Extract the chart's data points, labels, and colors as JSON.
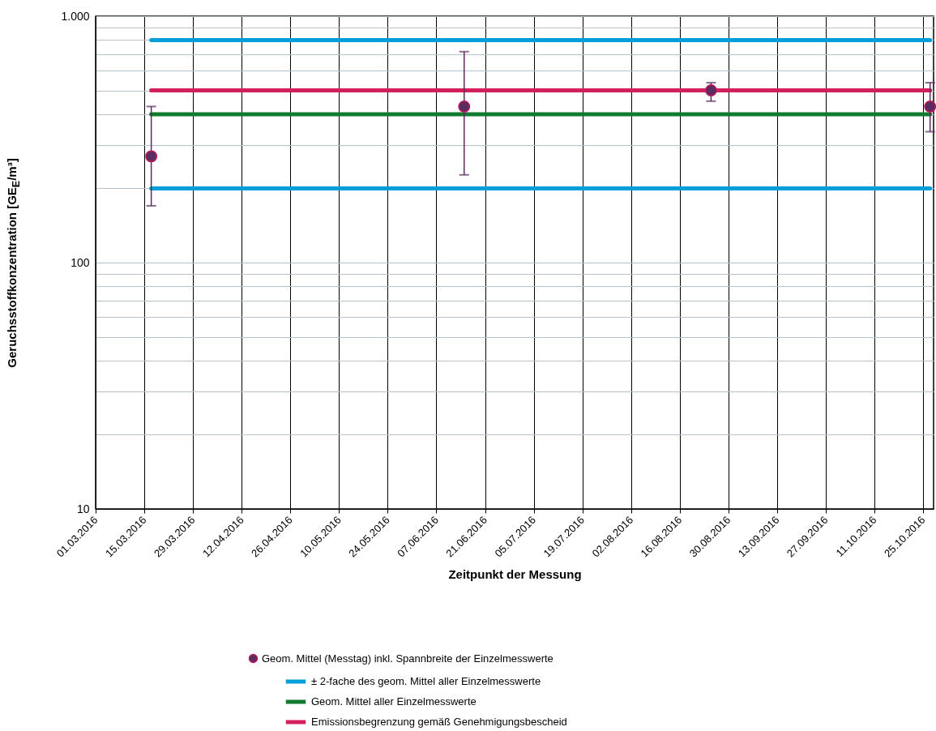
{
  "chart_data": {
    "type": "scatter",
    "xlabel": "Zeitpunkt der Messung",
    "ylabel": "Geruchsstoffkonzentration [GE$_{E}$/m³]",
    "log": true,
    "grid": true,
    "legend": "bottom",
    "xlim": [
      "2016-03-01",
      "2016-10-28"
    ],
    "xticks": [
      {
        "value": "2016-03-01",
        "label": "01.03.2016"
      },
      {
        "value": "2016-03-15",
        "label": "15.03.2016"
      },
      {
        "value": "2016-03-29",
        "label": "29.03.2016"
      },
      {
        "value": "2016-04-12",
        "label": "12.04.2016"
      },
      {
        "value": "2016-04-26",
        "label": "26.04.2016"
      },
      {
        "value": "2016-05-10",
        "label": "10.05.2016"
      },
      {
        "value": "2016-05-24",
        "label": "24.05.2016"
      },
      {
        "value": "2016-06-07",
        "label": "07.06.2016"
      },
      {
        "value": "2016-06-21",
        "label": "21.06.2016"
      },
      {
        "value": "2016-07-05",
        "label": "05.07.2016"
      },
      {
        "value": "2016-07-19",
        "label": "19.07.2016"
      },
      {
        "value": "2016-08-02",
        "label": "02.08.2016"
      },
      {
        "value": "2016-08-16",
        "label": "16.08.2016"
      },
      {
        "value": "2016-08-30",
        "label": "30.08.2016"
      },
      {
        "value": "2016-09-13",
        "label": "13.09.2016"
      },
      {
        "value": "2016-09-27",
        "label": "27.09.2016"
      },
      {
        "value": "2016-10-11",
        "label": "11.10.2016"
      },
      {
        "value": "2016-10-25",
        "label": "25.10.2016"
      }
    ],
    "ylim": [
      10,
      1000
    ],
    "yticks": [
      10,
      {
        "value": 20,
        "label": null
      },
      {
        "value": 30,
        "label": null
      },
      {
        "value": 40,
        "label": null
      },
      {
        "value": 50,
        "label": null
      },
      {
        "value": 60,
        "label": null
      },
      {
        "value": 70,
        "label": null
      },
      {
        "value": 80,
        "label": null
      },
      {
        "value": 90,
        "label": null
      },
      100,
      {
        "value": 200,
        "label": null
      },
      {
        "value": 300,
        "label": null
      },
      {
        "value": 400,
        "label": null
      },
      {
        "value": 500,
        "label": null
      },
      {
        "value": 600,
        "label": null
      },
      {
        "value": 700,
        "label": null
      },
      {
        "value": 800,
        "label": null
      },
      {
        "value": 900,
        "label": null
      },
      {
        "value": 1000,
        "label": "1.000"
      }
    ],
    "series": [
      {
        "name": "Geom. Mittel (Messtag) inkl. Spannbreite der Einzelmesswerte",
        "marker": "circle",
        "color": "#5b2c5f",
        "x": [
          "2016-03-17",
          "2016-06-15",
          "2016-08-25",
          "2016-10-27"
        ],
        "values": [
          270,
          430,
          500,
          430
        ],
        "errors": [
          [
            170,
            430
          ],
          [
            227,
            718
          ],
          [
            452,
            537
          ],
          [
            340,
            537
          ]
        ]
      },
      {
        "name": "± 2-fache des geom. Mittel aller Einzelmesswerte",
        "type": "line",
        "color": "#009fda",
        "x": [
          "2016-03-17",
          "2016-10-27"
        ],
        "values": [
          800,
          800
        ]
      },
      {
        "type": "line",
        "color": "#009fda",
        "x": [
          "2016-03-17",
          "2016-10-27"
        ],
        "values": [
          200,
          200
        ]
      },
      {
        "name": "Geom. Mittel aller Einzelmesswerte",
        "type": "line",
        "color": "#107a2f",
        "x": [
          "2016-03-17",
          "2016-10-27"
        ],
        "values": [
          400,
          400
        ]
      },
      {
        "name": "Emissionsbegrenzung gemäß Genehmigungsbescheid",
        "type": "line",
        "color": "#d41e5e",
        "x": [
          "2016-03-17",
          "2016-10-27"
        ],
        "values": [
          500,
          500
        ]
      }
    ]
  }
}
